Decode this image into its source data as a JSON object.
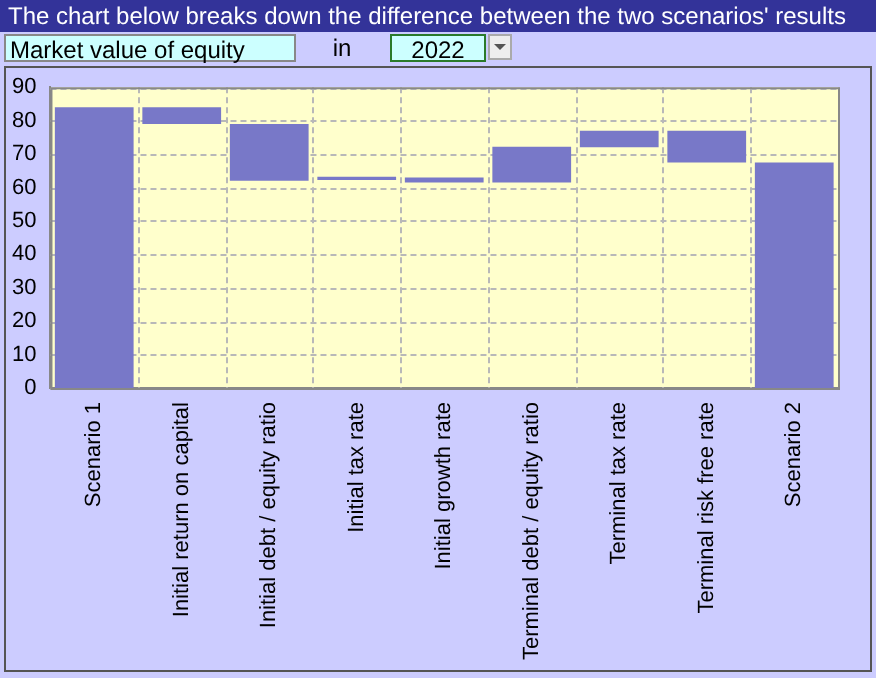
{
  "chart_data": {
    "type": "bar",
    "title": "The chart below breaks down the difference between the two scenarios' results",
    "annotations": [
      "Market value of equity",
      "in",
      "2022"
    ],
    "categories": [
      "Scenario 1",
      "Initial return on capital",
      "Initial debt / equity ratio",
      "Initial tax rate",
      "Initial growth rate",
      "Terminal debt / equity ratio",
      "Terminal tax rate",
      "Terminal risk free rate",
      "Scenario 2"
    ],
    "values": [
      84,
      5,
      17,
      1,
      1.5,
      10.7,
      5,
      9.5,
      67.5
    ],
    "base": [
      0,
      79,
      62,
      62.2,
      61.5,
      61.5,
      72,
      67.5,
      0
    ],
    "color": "#7878c8",
    "ylim": [
      0,
      90
    ],
    "yticks": [
      0,
      10,
      20,
      30,
      40,
      50,
      60,
      70,
      80,
      90
    ],
    "grid": true,
    "legend": false
  }
}
